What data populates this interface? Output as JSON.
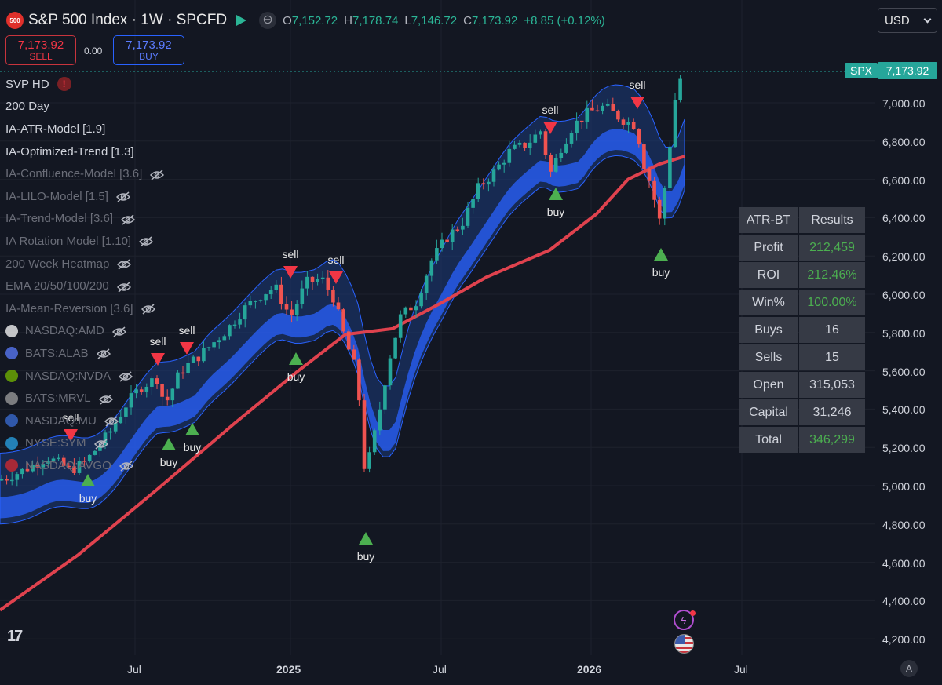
{
  "header": {
    "symbol_badge": "500",
    "title": "S&P 500 Index · 1W · SPCFD",
    "hide_glyph": "⊖",
    "ohlc": {
      "o_label": "O",
      "o": "7,152.72",
      "h_label": "H",
      "h": "7,178.74",
      "l_label": "L",
      "l": "7,146.72",
      "c_label": "C",
      "c": "7,173.92",
      "change": "+8.85 (+0.12%)"
    },
    "currency": "USD"
  },
  "trade": {
    "sell_price": "7,173.92",
    "sell_label": "SELL",
    "spread": "0.00",
    "buy_price": "7,173.92",
    "buy_label": "BUY"
  },
  "indicators": [
    {
      "label": "SVP HD",
      "visible": true,
      "alert": "!"
    },
    {
      "label": "200 Day",
      "visible": true
    },
    {
      "label": "IA-ATR-Model [1.9]",
      "visible": true
    },
    {
      "label": "IA-Optimized-Trend [1.3]",
      "visible": true
    },
    {
      "label": "IA-Confluence-Model [3.6]",
      "visible": false
    },
    {
      "label": "IA-LILO-Model [1.5]",
      "visible": false
    },
    {
      "label": "IA-Trend-Model [3.6]",
      "visible": false
    },
    {
      "label": "IA Rotation Model [1.10]",
      "visible": false
    },
    {
      "label": "200 Week Heatmap",
      "visible": false
    },
    {
      "label": "EMA 20/50/100/200",
      "visible": false
    },
    {
      "label": "IA-Mean-Reversion [3.6]",
      "visible": false
    },
    {
      "label": "NASDAQ:AMD",
      "visible": false,
      "icon_color": "#ffffff"
    },
    {
      "label": "BATS:ALAB",
      "visible": false,
      "icon_color": "#5b7cff"
    },
    {
      "label": "NASDAQ:NVDA",
      "visible": false,
      "icon_color": "#76b900"
    },
    {
      "label": "BATS:MRVL",
      "visible": false,
      "icon_color": "#a0a0a0"
    },
    {
      "label": "NASDAQ:MU",
      "visible": false,
      "icon_color": "#3b6fd8"
    },
    {
      "label": "NYSE:SYM",
      "visible": false,
      "icon_color": "#2aa6e8"
    },
    {
      "label": "NASDAQ:AVGO",
      "visible": false,
      "icon_color": "#d8292f"
    }
  ],
  "price_axis": {
    "labels": [
      "7,000.00",
      "6,800.00",
      "6,600.00",
      "6,400.00",
      "6,200.00",
      "6,000.00",
      "5,800.00",
      "5,600.00",
      "5,400.00",
      "5,200.00",
      "5,000.00",
      "4,800.00",
      "4,600.00",
      "4,400.00",
      "4,200.00"
    ],
    "symbol_tag": "SPX",
    "last_price_tag": "7,173.92"
  },
  "time_axis": {
    "labels": [
      {
        "text": "Jul",
        "bold": false
      },
      {
        "text": "2025",
        "bold": true
      },
      {
        "text": "Jul",
        "bold": false
      },
      {
        "text": "2026",
        "bold": true
      },
      {
        "text": "Jul",
        "bold": false
      }
    ],
    "auto_label": "A"
  },
  "signals": {
    "sell_text": "sell",
    "buy_text": "buy"
  },
  "backtest": {
    "header": [
      "ATR-BT",
      "Results"
    ],
    "rows": [
      {
        "label": "Profit",
        "value": "212,459",
        "green": true
      },
      {
        "label": "ROI",
        "value": "212.46%",
        "green": true
      },
      {
        "label": "Win%",
        "value": "100.00%",
        "green": true
      },
      {
        "label": "Buys",
        "value": "16",
        "green": false
      },
      {
        "label": "Sells",
        "value": "15",
        "green": false
      },
      {
        "label": "Open",
        "value": "315,053",
        "green": false
      },
      {
        "label": "Capital",
        "value": "31,246",
        "green": false
      },
      {
        "label": "Total",
        "value": "346,299",
        "green": true
      }
    ]
  },
  "footer": {
    "logo": "17",
    "bolt_glyph": "ϟ"
  },
  "colors": {
    "up": "#26a69a",
    "down": "#ef5350",
    "ma200": "#e0424e",
    "band": "#2962ff",
    "accent": "#2bb596"
  }
}
